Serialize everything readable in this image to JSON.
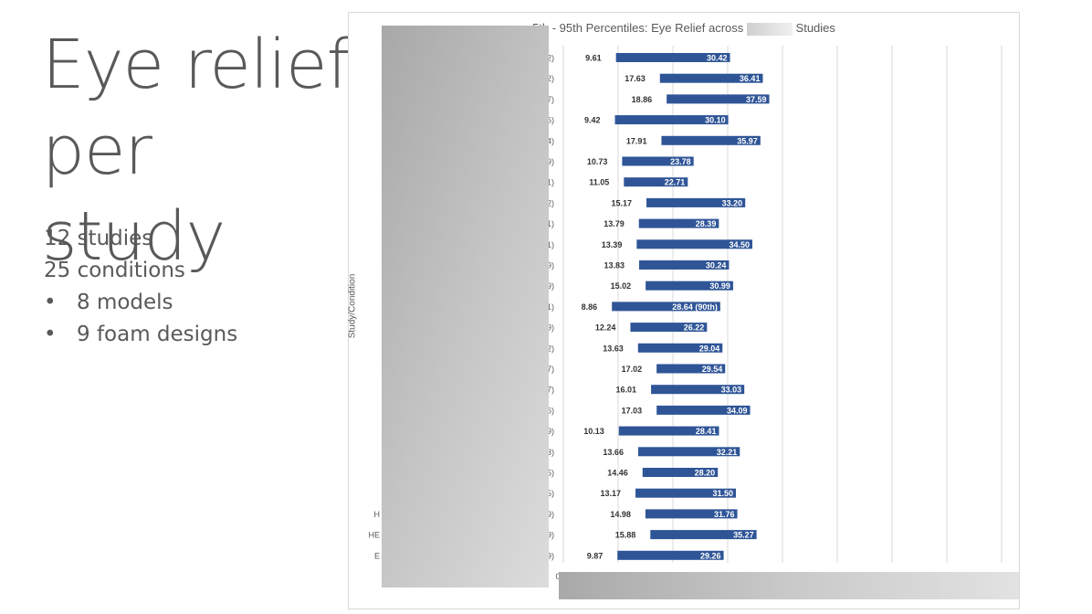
{
  "slide": {
    "title_line1": "Eye relief",
    "title_line2": "per study",
    "bullets": [
      "12 studies",
      "25 conditions"
    ],
    "subbullets": [
      "8 models",
      "9 foam designs"
    ]
  },
  "colors": {
    "bar": "#2F5597",
    "grid": "#d9d9d9",
    "text": "#595959"
  },
  "chart_data": {
    "type": "bar",
    "orientation": "horizontal-floating",
    "title_prefix": "5th - 95th Percentiles: Eye Relief across",
    "title_suffix": "Studies",
    "ylabel": "Study/Condition",
    "xlabel": "",
    "x_tick_first": "0",
    "grid": true,
    "category_suffixes": [
      "2)",
      "2)",
      "7)",
      "6)",
      "4)",
      "9)",
      "1)",
      "2)",
      "1)",
      "1)",
      "9)",
      "9)",
      "1)",
      "9)",
      "2)",
      "7)",
      "7)",
      "6)",
      "9)",
      "3)",
      "5)",
      "5)",
      "9)",
      "9)",
      "9)"
    ],
    "category_prefixes": [
      "",
      "",
      "",
      "",
      "",
      "",
      "",
      "",
      "",
      "",
      "",
      "",
      "",
      "",
      "",
      "",
      "",
      "",
      "",
      "",
      "",
      "",
      "H",
      "HE",
      "E"
    ],
    "series": [
      {
        "name": "5th",
        "values": [
          9.61,
          17.63,
          18.86,
          9.42,
          17.91,
          10.73,
          11.05,
          15.17,
          13.79,
          13.39,
          13.83,
          15.02,
          8.86,
          12.24,
          13.63,
          17.02,
          16.01,
          17.03,
          10.13,
          13.66,
          14.46,
          13.17,
          14.98,
          15.88,
          9.87
        ]
      },
      {
        "name": "95th",
        "values": [
          30.42,
          36.41,
          37.59,
          30.1,
          35.97,
          23.78,
          22.71,
          33.2,
          28.39,
          34.5,
          30.24,
          30.99,
          28.64,
          26.22,
          29.04,
          29.54,
          33.03,
          34.09,
          28.41,
          32.21,
          28.2,
          31.5,
          31.76,
          35.27,
          29.26
        ]
      }
    ],
    "min_labels": [
      "9.61",
      "17.63",
      "18.86",
      "9.42",
      "17.91",
      "10.73",
      "11.05",
      "15.17",
      "13.79",
      "13.39",
      "13.83",
      "15.02",
      "8.86",
      "12.24",
      "13.63",
      "17.02",
      "16.01",
      "17.03",
      "10.13",
      "13.66",
      "14.46",
      "13.17",
      "14.98",
      "15.88",
      "9.87"
    ],
    "max_labels": [
      "30.42",
      "36.41",
      "37.59",
      "30.10",
      "35.97",
      "23.78",
      "22.71",
      "33.20",
      "28.39",
      "34.50",
      "30.24",
      "30.99",
      "28.64 (90th)",
      "26.22",
      "29.04",
      "29.54",
      "33.03",
      "34.09",
      "28.41",
      "32.21",
      "28.20",
      "31.50",
      "31.76",
      "35.27",
      "29.26"
    ]
  }
}
